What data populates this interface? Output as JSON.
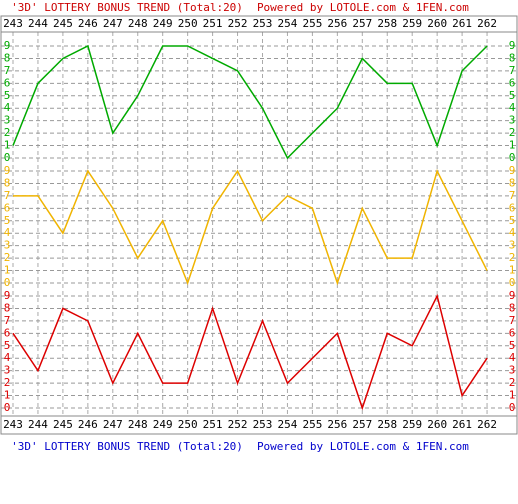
{
  "chart_data": {
    "type": "line",
    "title": "'3D' LOTTERY BONUS TREND (Total:20)",
    "credit": "Powered by LOTOLE.com & 1FEN.com",
    "categories": [
      "243",
      "244",
      "245",
      "246",
      "247",
      "248",
      "249",
      "250",
      "251",
      "252",
      "253",
      "254",
      "255",
      "256",
      "257",
      "258",
      "259",
      "260",
      "261",
      "262"
    ],
    "ylim": [
      0,
      9
    ],
    "yticks": [
      0,
      1,
      2,
      3,
      4,
      5,
      6,
      7,
      8,
      9
    ],
    "grid": true,
    "series": [
      {
        "color": "#00aa00",
        "values": [
          1,
          6,
          8,
          9,
          2,
          5,
          9,
          9,
          8,
          7,
          4,
          0,
          2,
          4,
          8,
          6,
          6,
          1,
          7,
          9
        ]
      },
      {
        "color": "#f0b400",
        "values": [
          7,
          7,
          4,
          9,
          6,
          2,
          5,
          0,
          6,
          9,
          5,
          7,
          6,
          0,
          6,
          2,
          2,
          9,
          5,
          1
        ]
      },
      {
        "color": "#dd0000",
        "values": [
          6,
          3,
          8,
          7,
          2,
          6,
          2,
          2,
          8,
          2,
          7,
          2,
          4,
          6,
          0,
          6,
          5,
          9,
          1,
          4
        ]
      }
    ]
  }
}
